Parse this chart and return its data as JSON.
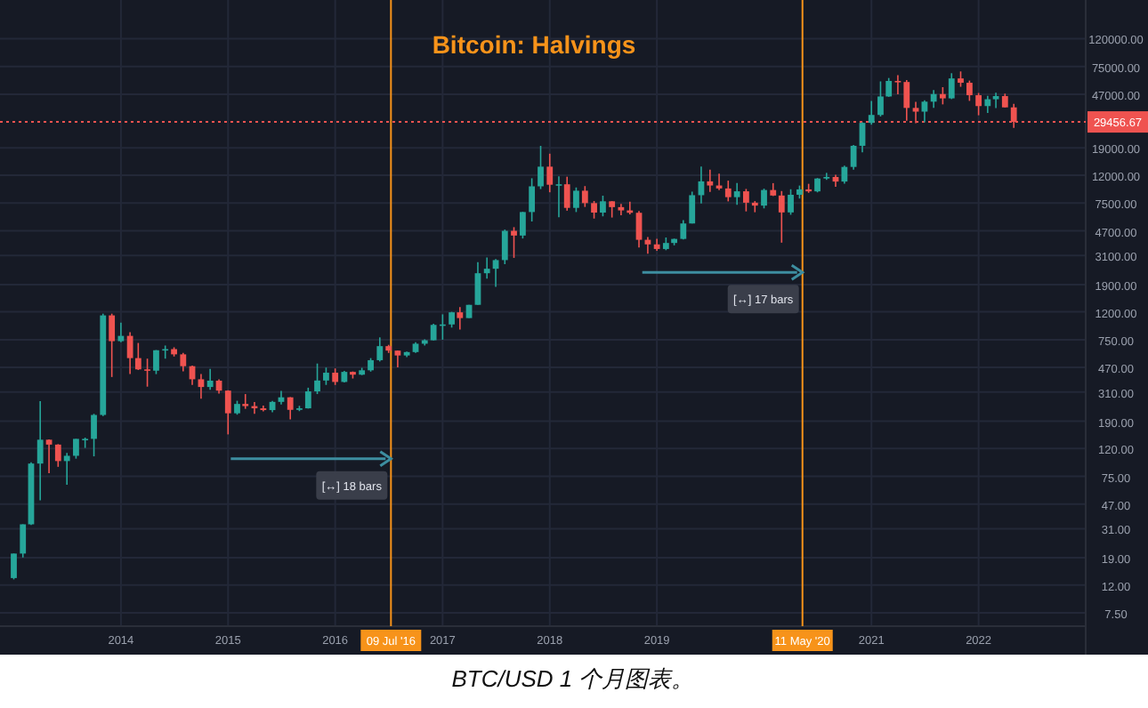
{
  "chart_data": {
    "type": "candlestick",
    "title": "Bitcoin: Halvings",
    "log": "y",
    "grid": true,
    "xlim": [
      "2012-11-15",
      "2023-01-01"
    ],
    "ylim": [
      6,
      230000
    ],
    "xticks": [
      {
        "value": "2014-01-01",
        "label": "2014"
      },
      {
        "value": "2015-01-01",
        "label": "2015"
      },
      {
        "value": "2016-01-01",
        "label": "2016"
      },
      {
        "value": "2017-01-01",
        "label": "2017"
      },
      {
        "value": "2018-01-01",
        "label": "2018"
      },
      {
        "value": "2019-01-01",
        "label": "2019"
      },
      {
        "value": "2021-01-01",
        "label": "2021"
      },
      {
        "value": "2022-01-01",
        "label": "2022"
      }
    ],
    "yticks": [
      {
        "value": 7.5,
        "label": "7.50"
      },
      {
        "value": 12,
        "label": "12.00"
      },
      {
        "value": 19,
        "label": "19.00"
      },
      {
        "value": 31,
        "label": "31.00"
      },
      {
        "value": 47,
        "label": "47.00"
      },
      {
        "value": 75,
        "label": "75.00"
      },
      {
        "value": 120,
        "label": "120.00"
      },
      {
        "value": 190,
        "label": "190.00"
      },
      {
        "value": 310,
        "label": "310.00"
      },
      {
        "value": 470,
        "label": "470.00"
      },
      {
        "value": 750,
        "label": "750.00"
      },
      {
        "value": 1200,
        "label": "1200.00"
      },
      {
        "value": 1900,
        "label": "1900.00"
      },
      {
        "value": 3100,
        "label": "3100.00"
      },
      {
        "value": 4700,
        "label": "4700.00"
      },
      {
        "value": 7500,
        "label": "7500.00"
      },
      {
        "value": 12000,
        "label": "12000.00"
      },
      {
        "value": 19000,
        "label": "19000.00"
      },
      {
        "value": 47000,
        "label": "47000.00"
      },
      {
        "value": 75000,
        "label": "75000.00"
      },
      {
        "value": 120000,
        "label": "120000.00"
      }
    ],
    "ref_lines": [
      {
        "axis": "x",
        "value": "2016-07-09",
        "label": "09 Jul '16",
        "color": "#f7931a"
      },
      {
        "axis": "x",
        "value": "2020-05-11",
        "label": "11 May '20",
        "color": "#f7931a"
      },
      {
        "axis": "y",
        "value": 29456.67,
        "label": "29456.67",
        "color": "#ef5350",
        "line_style": "dotted"
      }
    ],
    "annotations": [
      {
        "text": "[↔] 18 bars",
        "x": "2016-07-09",
        "y": 101
      },
      {
        "text": "[↔] 17 bars",
        "x": "2020-05-11",
        "y": 2330
      },
      "BTC/USD 1 个月图表。"
    ],
    "x": [
      "2013-01",
      "2013-02",
      "2013-03",
      "2013-04",
      "2013-05",
      "2013-06",
      "2013-07",
      "2013-08",
      "2013-09",
      "2013-10",
      "2013-11",
      "2013-12",
      "2014-01",
      "2014-02",
      "2014-03",
      "2014-04",
      "2014-05",
      "2014-06",
      "2014-07",
      "2014-08",
      "2014-09",
      "2014-10",
      "2014-11",
      "2014-12",
      "2015-01",
      "2015-02",
      "2015-03",
      "2015-04",
      "2015-05",
      "2015-06",
      "2015-07",
      "2015-08",
      "2015-09",
      "2015-10",
      "2015-11",
      "2015-12",
      "2016-01",
      "2016-02",
      "2016-03",
      "2016-04",
      "2016-05",
      "2016-06",
      "2016-07",
      "2016-08",
      "2016-09",
      "2016-10",
      "2016-11",
      "2016-12",
      "2017-01",
      "2017-02",
      "2017-03",
      "2017-04",
      "2017-05",
      "2017-06",
      "2017-07",
      "2017-08",
      "2017-09",
      "2017-10",
      "2017-11",
      "2017-12",
      "2018-01",
      "2018-02",
      "2018-03",
      "2018-04",
      "2018-05",
      "2018-06",
      "2018-07",
      "2018-08",
      "2018-09",
      "2018-10",
      "2018-11",
      "2018-12",
      "2019-01",
      "2019-02",
      "2019-03",
      "2019-04",
      "2019-05",
      "2019-06",
      "2019-07",
      "2019-08",
      "2019-09",
      "2019-10",
      "2019-11",
      "2019-12",
      "2020-01",
      "2020-02",
      "2020-03",
      "2020-04",
      "2020-05",
      "2020-06",
      "2020-07",
      "2020-08",
      "2020-09",
      "2020-10",
      "2020-11",
      "2020-12",
      "2021-01",
      "2021-02",
      "2021-03",
      "2021-04",
      "2021-05",
      "2021-06",
      "2021-07",
      "2021-08",
      "2021-09",
      "2021-10",
      "2021-11",
      "2021-12",
      "2022-01",
      "2022-02",
      "2022-03",
      "2022-04",
      "2022-05"
    ],
    "ohlc": [
      [
        13.5,
        20.4,
        13.2,
        20.4
      ],
      [
        20.4,
        33.4,
        19.1,
        33.4
      ],
      [
        33.4,
        95,
        33,
        93
      ],
      [
        93,
        266,
        50,
        139
      ],
      [
        139,
        140,
        79,
        128
      ],
      [
        128,
        129,
        88,
        97
      ],
      [
        97,
        111,
        65,
        106
      ],
      [
        106,
        141,
        101,
        141
      ],
      [
        141,
        144,
        121,
        141
      ],
      [
        141,
        215,
        105,
        211
      ],
      [
        211,
        1163,
        207,
        1130
      ],
      [
        1130,
        1163,
        400,
        732
      ],
      [
        732,
        1000,
        720,
        800
      ],
      [
        800,
        850,
        420,
        550
      ],
      [
        550,
        710,
        450,
        455
      ],
      [
        455,
        545,
        340,
        445
      ],
      [
        445,
        630,
        420,
        628
      ],
      [
        628,
        680,
        545,
        640
      ],
      [
        640,
        660,
        565,
        586
      ],
      [
        586,
        600,
        440,
        480
      ],
      [
        480,
        485,
        350,
        385
      ],
      [
        385,
        420,
        278,
        338
      ],
      [
        338,
        458,
        322,
        376
      ],
      [
        376,
        384,
        303,
        318
      ],
      [
        318,
        320,
        152,
        217
      ],
      [
        217,
        268,
        212,
        254
      ],
      [
        254,
        300,
        234,
        245
      ],
      [
        245,
        262,
        215,
        236
      ],
      [
        236,
        247,
        224,
        229
      ],
      [
        229,
        267,
        221,
        263
      ],
      [
        263,
        316,
        252,
        284
      ],
      [
        284,
        285,
        196,
        230
      ],
      [
        230,
        246,
        225,
        236
      ],
      [
        236,
        334,
        235,
        314
      ],
      [
        314,
        502,
        300,
        377
      ],
      [
        377,
        469,
        350,
        430
      ],
      [
        430,
        462,
        350,
        368
      ],
      [
        368,
        444,
        365,
        436
      ],
      [
        436,
        439,
        390,
        416
      ],
      [
        416,
        467,
        413,
        448
      ],
      [
        448,
        550,
        438,
        531
      ],
      [
        531,
        780,
        520,
        673
      ],
      [
        673,
        688,
        600,
        624
      ],
      [
        624,
        627,
        470,
        575
      ],
      [
        575,
        614,
        560,
        609
      ],
      [
        609,
        718,
        600,
        701
      ],
      [
        701,
        755,
        680,
        743
      ],
      [
        743,
        980,
        740,
        963
      ],
      [
        963,
        1150,
        750,
        970
      ],
      [
        970,
        1200,
        920,
        1190
      ],
      [
        1190,
        1300,
        890,
        1080
      ],
      [
        1080,
        1350,
        1080,
        1350
      ],
      [
        1350,
        2770,
        1350,
        2300
      ],
      [
        2300,
        3000,
        2100,
        2480
      ],
      [
        2480,
        2920,
        1830,
        2870
      ],
      [
        2870,
        4800,
        2680,
        4700
      ],
      [
        4700,
        5000,
        2980,
        4340
      ],
      [
        4340,
        6470,
        4130,
        6450
      ],
      [
        6450,
        11400,
        5500,
        9950
      ],
      [
        9950,
        19670,
        9500,
        13860
      ],
      [
        13860,
        17250,
        9000,
        10220
      ],
      [
        10220,
        11790,
        5900,
        10300
      ],
      [
        10300,
        11700,
        6600,
        6920
      ],
      [
        6920,
        9760,
        6450,
        9240
      ],
      [
        9240,
        9990,
        7030,
        7500
      ],
      [
        7500,
        7770,
        5780,
        6390
      ],
      [
        6390,
        8500,
        6000,
        7730
      ],
      [
        7730,
        7750,
        5880,
        7010
      ],
      [
        7010,
        7400,
        6100,
        6630
      ],
      [
        6630,
        7680,
        6200,
        6370
      ],
      [
        6370,
        6560,
        3550,
        4040
      ],
      [
        4040,
        4240,
        3200,
        3740
      ],
      [
        3740,
        4100,
        3350,
        3460
      ],
      [
        3460,
        4200,
        3390,
        3830
      ],
      [
        3830,
        4120,
        3680,
        4100
      ],
      [
        4100,
        5620,
        4060,
        5320
      ],
      [
        5320,
        9100,
        5320,
        8570
      ],
      [
        8570,
        13880,
        7450,
        10820
      ],
      [
        10820,
        13200,
        9070,
        10090
      ],
      [
        10090,
        12330,
        9320,
        9600
      ],
      [
        9600,
        10950,
        7720,
        8290
      ],
      [
        8290,
        10520,
        7300,
        9150
      ],
      [
        9150,
        9520,
        6520,
        7550
      ],
      [
        7550,
        7760,
        6430,
        7190
      ],
      [
        7190,
        9570,
        6860,
        9350
      ],
      [
        9350,
        10500,
        8450,
        8520
      ],
      [
        8520,
        9190,
        3850,
        6410
      ],
      [
        6410,
        9470,
        6160,
        8630
      ],
      [
        8630,
        10080,
        8100,
        9450
      ],
      [
        9450,
        10380,
        8920,
        9140
      ],
      [
        9140,
        11440,
        8990,
        11350
      ],
      [
        11350,
        12480,
        11100,
        11650
      ],
      [
        11650,
        12100,
        9880,
        10780
      ],
      [
        10780,
        14100,
        10420,
        13800
      ],
      [
        13800,
        19950,
        13200,
        19700
      ],
      [
        19700,
        29300,
        17620,
        28990
      ],
      [
        28990,
        41950,
        28130,
        33140
      ],
      [
        33140,
        58350,
        32300,
        45240
      ],
      [
        45240,
        61780,
        44950,
        58790
      ],
      [
        58790,
        64900,
        47000,
        57750
      ],
      [
        57750,
        59600,
        30000,
        37300
      ],
      [
        37300,
        41330,
        28800,
        35040
      ],
      [
        35040,
        42400,
        29280,
        41460
      ],
      [
        41460,
        50500,
        37330,
        47130
      ],
      [
        47130,
        52920,
        39600,
        43830
      ],
      [
        43830,
        66970,
        43290,
        61320
      ],
      [
        61320,
        69000,
        53260,
        57000
      ],
      [
        57000,
        59120,
        42000,
        46210
      ],
      [
        46210,
        47990,
        32950,
        38480
      ],
      [
        38480,
        45800,
        34320,
        43180
      ],
      [
        43180,
        48200,
        37170,
        45540
      ],
      [
        45540,
        47450,
        37600,
        37650
      ],
      [
        37650,
        40000,
        26700,
        29456.67
      ]
    ]
  }
}
